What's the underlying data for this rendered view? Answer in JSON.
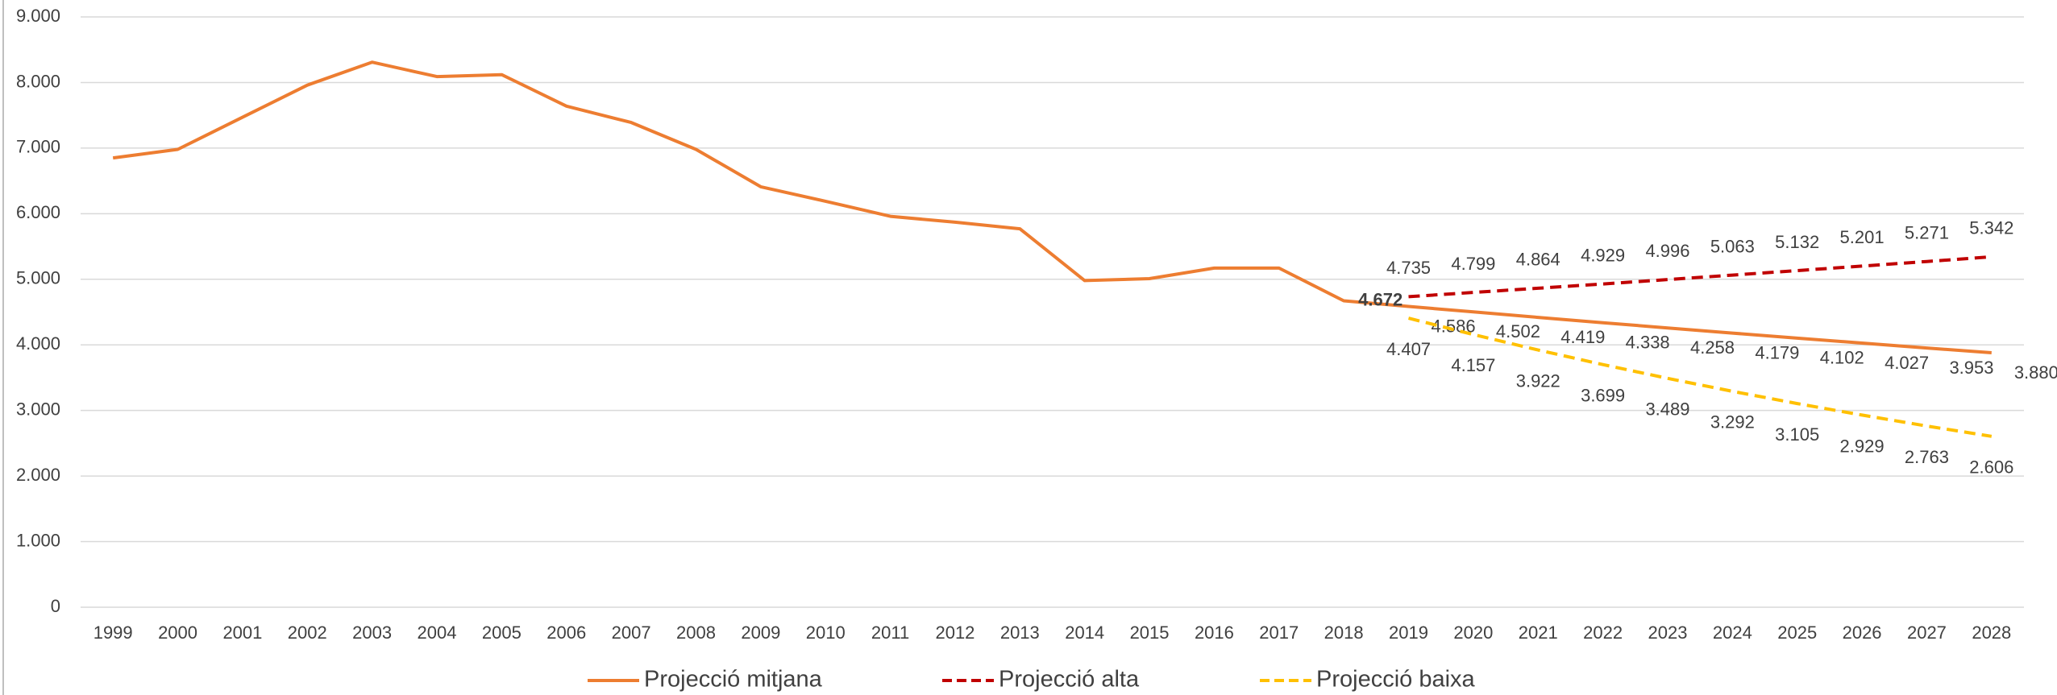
{
  "chart_data": {
    "type": "line",
    "categories": [
      "1999",
      "2000",
      "2001",
      "2002",
      "2003",
      "2004",
      "2005",
      "2006",
      "2007",
      "2008",
      "2009",
      "2010",
      "2011",
      "2012",
      "2013",
      "2014",
      "2015",
      "2016",
      "2017",
      "2018",
      "2019",
      "2020",
      "2021",
      "2022",
      "2023",
      "2024",
      "2025",
      "2026",
      "2027",
      "2028"
    ],
    "ylim": [
      0,
      9000
    ],
    "yticks": [
      {
        "value": 0,
        "label": "0"
      },
      {
        "value": 1000,
        "label": "1.000"
      },
      {
        "value": 2000,
        "label": "2.000"
      },
      {
        "value": 3000,
        "label": "3.000"
      },
      {
        "value": 4000,
        "label": "4.000"
      },
      {
        "value": 5000,
        "label": "5.000"
      },
      {
        "value": 6000,
        "label": "6.000"
      },
      {
        "value": 7000,
        "label": "7.000"
      },
      {
        "value": 8000,
        "label": "8.000"
      },
      {
        "value": 9000,
        "label": "9.000"
      }
    ],
    "grid": true,
    "legend": "bottom",
    "series": [
      {
        "name": "Projecció mitjana",
        "color": "#ED7D31",
        "dashed": false,
        "values": [
          6850,
          6980,
          7470,
          7960,
          8310,
          8090,
          8120,
          7640,
          7390,
          6980,
          6410,
          6190,
          5960,
          5870,
          5770,
          4980,
          5010,
          5170,
          5170,
          4672,
          4586,
          4502,
          4419,
          4338,
          4258,
          4179,
          4102,
          4027,
          3953,
          3880
        ],
        "value_labels": [
          null,
          null,
          null,
          null,
          null,
          null,
          null,
          null,
          null,
          null,
          null,
          null,
          null,
          null,
          null,
          null,
          null,
          null,
          null,
          "4.672",
          "4.586",
          "4.502",
          "4.419",
          "4.338",
          "4.258",
          "4.179",
          "4.102",
          "4.027",
          "3.953",
          "3.880"
        ]
      },
      {
        "name": "Projecció alta",
        "color": "#C00000",
        "dashed": true,
        "values": [
          null,
          null,
          null,
          null,
          null,
          null,
          null,
          null,
          null,
          null,
          null,
          null,
          null,
          null,
          null,
          null,
          null,
          null,
          null,
          null,
          4735,
          4799,
          4864,
          4929,
          4996,
          5063,
          5132,
          5201,
          5271,
          5342
        ],
        "value_labels": [
          null,
          null,
          null,
          null,
          null,
          null,
          null,
          null,
          null,
          null,
          null,
          null,
          null,
          null,
          null,
          null,
          null,
          null,
          null,
          null,
          "4.735",
          "4.799",
          "4.864",
          "4.929",
          "4.996",
          "5.063",
          "5.132",
          "5.201",
          "5.271",
          "5.342"
        ]
      },
      {
        "name": "Projecció baixa",
        "color": "#FFC000",
        "dashed": true,
        "values": [
          null,
          null,
          null,
          null,
          null,
          null,
          null,
          null,
          null,
          null,
          null,
          null,
          null,
          null,
          null,
          null,
          null,
          null,
          null,
          null,
          4407,
          4157,
          3922,
          3699,
          3489,
          3292,
          3105,
          2929,
          2763,
          2606
        ],
        "value_labels": [
          null,
          null,
          null,
          null,
          null,
          null,
          null,
          null,
          null,
          null,
          null,
          null,
          null,
          null,
          null,
          null,
          null,
          null,
          null,
          null,
          "4.407",
          "4.157",
          "3.922",
          "3.699",
          "3.489",
          "3.292",
          "3.105",
          "2.929",
          "2.763",
          "2.606"
        ]
      }
    ]
  }
}
